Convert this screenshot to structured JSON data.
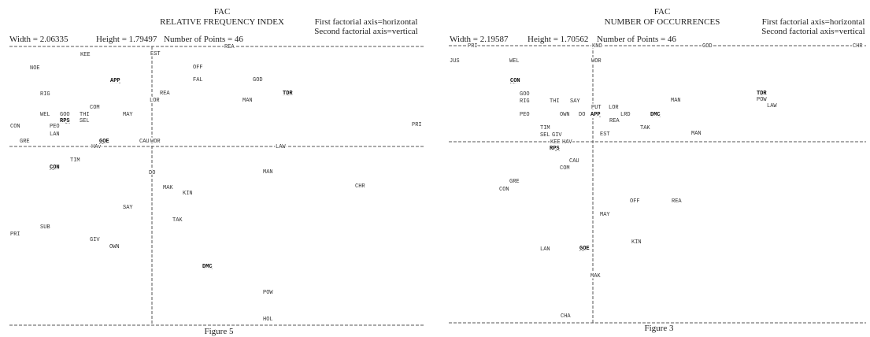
{
  "panels": [
    {
      "heading": "FAC",
      "title": "RELATIVE FREQUENCY INDEX",
      "note_1": "First factorial axis=horizontal",
      "note_2": "Second factorial axis=vertical",
      "width_label": "Width = 2.06335",
      "height_label": "Height = 1.79497",
      "points_label": "Number of Points = 46",
      "figure_label": "Figure 5",
      "points": [
        {
          "label": "REA"
        },
        {
          "label": "HAV"
        },
        {
          "label": "LAW"
        },
        {
          "label": "KEE"
        },
        {
          "label": "EST"
        },
        {
          "label": "NOE"
        },
        {
          "label": "OFF"
        },
        {
          "label": "APP",
          "bold": true
        },
        {
          "label": "FAL"
        },
        {
          "label": "GOD"
        },
        {
          "label": "RIG"
        },
        {
          "label": "REA"
        },
        {
          "label": "TDR",
          "bold": true
        },
        {
          "label": "LOR"
        },
        {
          "label": "MAN"
        },
        {
          "label": "COM"
        },
        {
          "label": "WEL"
        },
        {
          "label": "GOO"
        },
        {
          "label": "THI"
        },
        {
          "label": "MAY"
        },
        {
          "label": "RPS",
          "bold": true
        },
        {
          "label": "SEL"
        },
        {
          "label": "CON"
        },
        {
          "label": "PEO"
        },
        {
          "label": "PRI"
        },
        {
          "label": "LAN"
        },
        {
          "label": "GRE"
        },
        {
          "label": "GOE",
          "bold": true
        },
        {
          "label": "CAU"
        },
        {
          "label": "WOR"
        },
        {
          "label": "TIM"
        },
        {
          "label": "CON",
          "bold": true
        },
        {
          "label": "DO"
        },
        {
          "label": "MAN"
        },
        {
          "label": "CHR"
        },
        {
          "label": "MAK"
        },
        {
          "label": "KIN"
        },
        {
          "label": "SAY"
        },
        {
          "label": "TAK"
        },
        {
          "label": "SUB"
        },
        {
          "label": "PRI"
        },
        {
          "label": "GIV"
        },
        {
          "label": "OWN"
        },
        {
          "label": "DMC",
          "bold": true
        },
        {
          "label": "POW"
        },
        {
          "label": "HOL"
        }
      ]
    },
    {
      "heading": "FAC",
      "title": "NUMBER OF OCCURRENCES",
      "note_1": "First factorial axis=horizontal",
      "note_2": "Second factorial axis=vertical",
      "width_label": "Width = 2.19587",
      "height_label": "Height = 1.70562",
      "points_label": "Number of Points = 46",
      "figure_label": "Figure 3",
      "points": [
        {
          "label": "PRI"
        },
        {
          "label": "KNO"
        },
        {
          "label": "GOD"
        },
        {
          "label": "CHR"
        },
        {
          "label": "KEE"
        },
        {
          "label": "HAV"
        },
        {
          "label": "JUS"
        },
        {
          "label": "WEL"
        },
        {
          "label": "WOR"
        },
        {
          "label": "CON",
          "bold": true
        },
        {
          "label": "GOO"
        },
        {
          "label": "TDR",
          "bold": true
        },
        {
          "label": "RIG"
        },
        {
          "label": "THI"
        },
        {
          "label": "SAY"
        },
        {
          "label": "MAN"
        },
        {
          "label": "POW"
        },
        {
          "label": "LAW"
        },
        {
          "label": "PUT"
        },
        {
          "label": "LOR"
        },
        {
          "label": "PEO"
        },
        {
          "label": "OWN"
        },
        {
          "label": "DO"
        },
        {
          "label": "APP",
          "bold": true
        },
        {
          "label": "LRD"
        },
        {
          "label": "DMC",
          "bold": true
        },
        {
          "label": "REA"
        },
        {
          "label": "TAK"
        },
        {
          "label": "TIM"
        },
        {
          "label": "EST"
        },
        {
          "label": "MAN"
        },
        {
          "label": "SEL"
        },
        {
          "label": "GIV"
        },
        {
          "label": "RPS",
          "bold": true
        },
        {
          "label": "CAU"
        },
        {
          "label": "COM"
        },
        {
          "label": "GRE"
        },
        {
          "label": "CON"
        },
        {
          "label": "OFF"
        },
        {
          "label": "REA"
        },
        {
          "label": "MAY"
        },
        {
          "label": "KIN"
        },
        {
          "label": "LAN"
        },
        {
          "label": "GOE",
          "bold": true
        },
        {
          "label": "MAK"
        },
        {
          "label": "CHA"
        }
      ]
    }
  ]
}
